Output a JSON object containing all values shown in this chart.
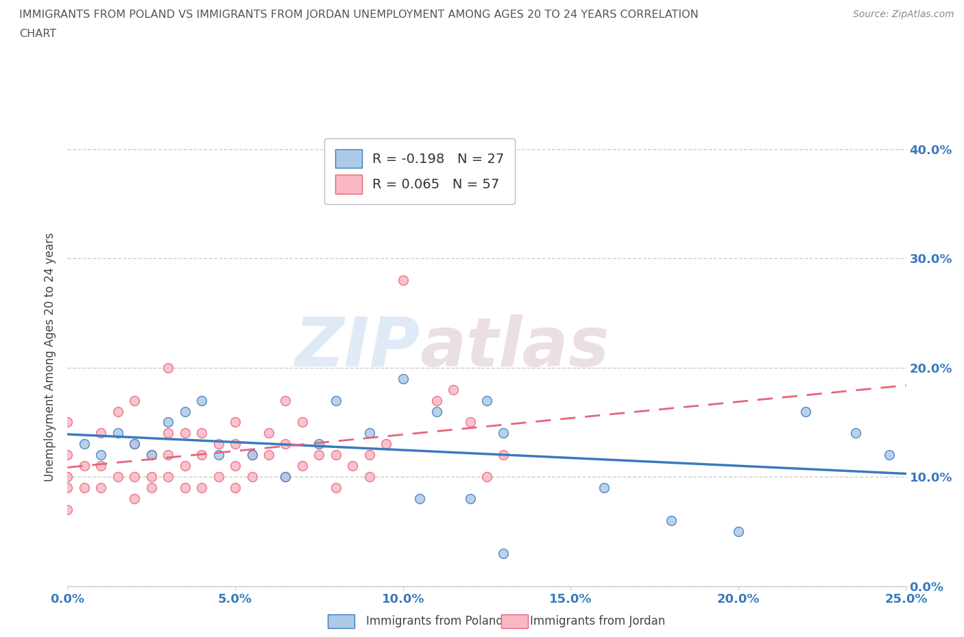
{
  "title_line1": "IMMIGRANTS FROM POLAND VS IMMIGRANTS FROM JORDAN UNEMPLOYMENT AMONG AGES 20 TO 24 YEARS CORRELATION",
  "title_line2": "CHART",
  "source_text": "Source: ZipAtlas.com",
  "ylabel": "Unemployment Among Ages 20 to 24 years",
  "xlim": [
    0.0,
    0.25
  ],
  "ylim": [
    0.0,
    0.42
  ],
  "x_ticks": [
    0.0,
    0.05,
    0.1,
    0.15,
    0.2,
    0.25
  ],
  "y_ticks": [
    0.0,
    0.1,
    0.2,
    0.3,
    0.4
  ],
  "poland_color": "#aec9e8",
  "poland_edge": "#3a7abf",
  "jordan_color": "#f9b8c4",
  "jordan_edge": "#e8637a",
  "poland_R": -0.198,
  "poland_N": 27,
  "jordan_R": 0.065,
  "jordan_N": 57,
  "poland_x": [
    0.005,
    0.01,
    0.015,
    0.02,
    0.025,
    0.03,
    0.035,
    0.04,
    0.045,
    0.055,
    0.065,
    0.075,
    0.08,
    0.09,
    0.1,
    0.11,
    0.125,
    0.13,
    0.16,
    0.18,
    0.2,
    0.22,
    0.235,
    0.12,
    0.105,
    0.245,
    0.13
  ],
  "poland_y": [
    0.13,
    0.12,
    0.14,
    0.13,
    0.12,
    0.15,
    0.16,
    0.17,
    0.12,
    0.12,
    0.1,
    0.13,
    0.17,
    0.14,
    0.19,
    0.16,
    0.17,
    0.14,
    0.09,
    0.06,
    0.05,
    0.16,
    0.14,
    0.08,
    0.08,
    0.12,
    0.03
  ],
  "jordan_x": [
    0.0,
    0.0,
    0.0,
    0.0,
    0.0,
    0.005,
    0.005,
    0.01,
    0.01,
    0.01,
    0.015,
    0.015,
    0.02,
    0.02,
    0.02,
    0.02,
    0.025,
    0.025,
    0.025,
    0.03,
    0.03,
    0.03,
    0.03,
    0.035,
    0.035,
    0.035,
    0.04,
    0.04,
    0.04,
    0.045,
    0.045,
    0.05,
    0.05,
    0.05,
    0.05,
    0.055,
    0.055,
    0.06,
    0.06,
    0.065,
    0.065,
    0.065,
    0.07,
    0.07,
    0.075,
    0.08,
    0.08,
    0.085,
    0.09,
    0.09,
    0.095,
    0.1,
    0.11,
    0.115,
    0.12,
    0.125,
    0.13
  ],
  "jordan_y": [
    0.07,
    0.09,
    0.1,
    0.12,
    0.15,
    0.09,
    0.11,
    0.09,
    0.11,
    0.14,
    0.1,
    0.16,
    0.08,
    0.1,
    0.13,
    0.17,
    0.09,
    0.12,
    0.1,
    0.1,
    0.12,
    0.14,
    0.2,
    0.09,
    0.11,
    0.14,
    0.09,
    0.12,
    0.14,
    0.1,
    0.13,
    0.09,
    0.11,
    0.13,
    0.15,
    0.1,
    0.12,
    0.12,
    0.14,
    0.1,
    0.13,
    0.17,
    0.11,
    0.15,
    0.12,
    0.09,
    0.12,
    0.11,
    0.1,
    0.12,
    0.13,
    0.28,
    0.17,
    0.18,
    0.15,
    0.1,
    0.12
  ],
  "watermark_zip": "ZIP",
  "watermark_atlas": "atlas",
  "background_color": "#ffffff",
  "grid_color": "#cccccc",
  "title_color": "#555555",
  "axis_label_color": "#444444",
  "tick_color": "#3a7abf",
  "legend_poland_label": "R = -0.198   N = 27",
  "legend_jordan_label": "R = 0.065   N = 57",
  "marker_size": 100,
  "bottom_label_poland": "Immigrants from Poland",
  "bottom_label_jordan": "Immigrants from Jordan"
}
